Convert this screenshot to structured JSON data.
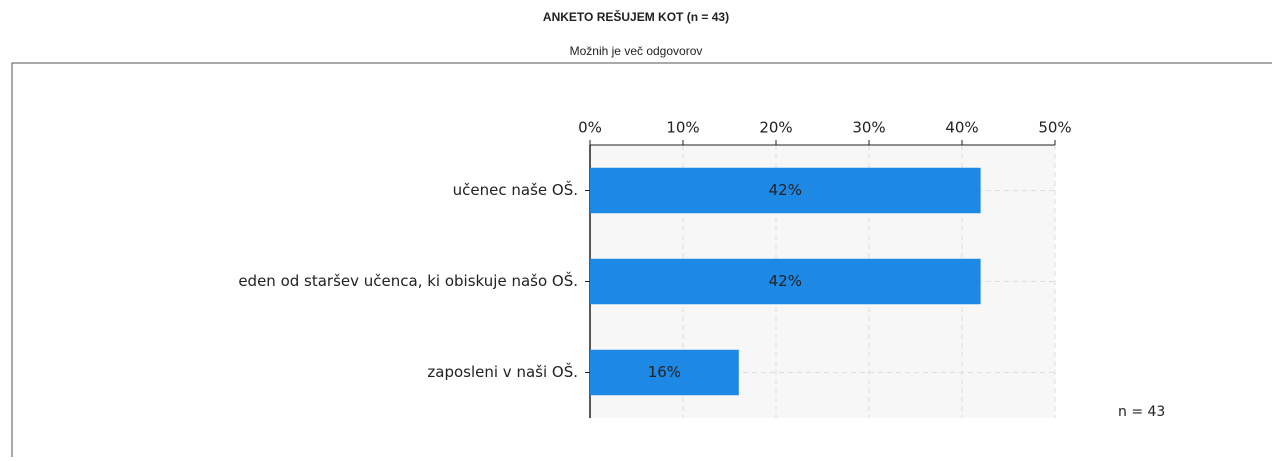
{
  "chart_data": {
    "type": "bar",
    "orientation": "horizontal",
    "title": "ANKETO REŠUJEM KOT (n = 43)",
    "subtitle": "Možnih je več odgovorov",
    "annotation": "n = 43",
    "categories": [
      "učenec naše OŠ.",
      "eden od staršev učenca, ki obiskuje našo OŠ.",
      "zaposleni v naši OŠ."
    ],
    "values": [
      42,
      42,
      16
    ],
    "value_labels": [
      "42%",
      "42%",
      "16%"
    ],
    "color": "#1e88e5",
    "xlim": [
      0,
      50
    ],
    "xticks": [
      {
        "value": 0,
        "label": "0%"
      },
      {
        "value": 10,
        "label": "10%"
      },
      {
        "value": 20,
        "label": "20%"
      },
      {
        "value": 30,
        "label": "30%"
      },
      {
        "value": 40,
        "label": "40%"
      },
      {
        "value": 50,
        "label": "50%"
      }
    ],
    "grid": true
  }
}
